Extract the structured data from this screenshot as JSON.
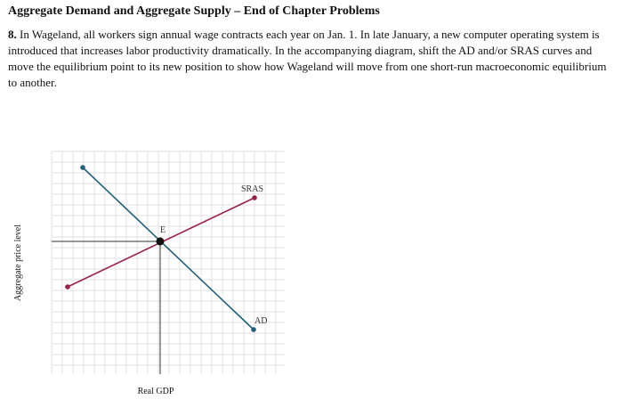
{
  "header": {
    "title": "Aggregate Demand and Aggregate Supply – End of Chapter Problems"
  },
  "problem": {
    "number": "8.",
    "text": " In Wageland, all workers sign annual wage contracts each year on Jan. 1. In late January, a new computer operating system is introduced that increases labor productivity dramatically. In the accompanying diagram, shift the AD and/or SRAS curves and move the equilibrium point to its new position to show how Wageland will move from one short-run macroeconomic equilibrium to another."
  },
  "graph": {
    "xlabel": "Real GDP",
    "ylabel": "Aggregate price level",
    "ad_label": "AD",
    "sras_label": "SRAS",
    "equilibrium_label": "E",
    "colors": {
      "ad": "#1f5f7a",
      "sras": "#9b1f4a",
      "grid": "#e2e2e2",
      "axis": "#333333",
      "point": "#111111"
    }
  }
}
